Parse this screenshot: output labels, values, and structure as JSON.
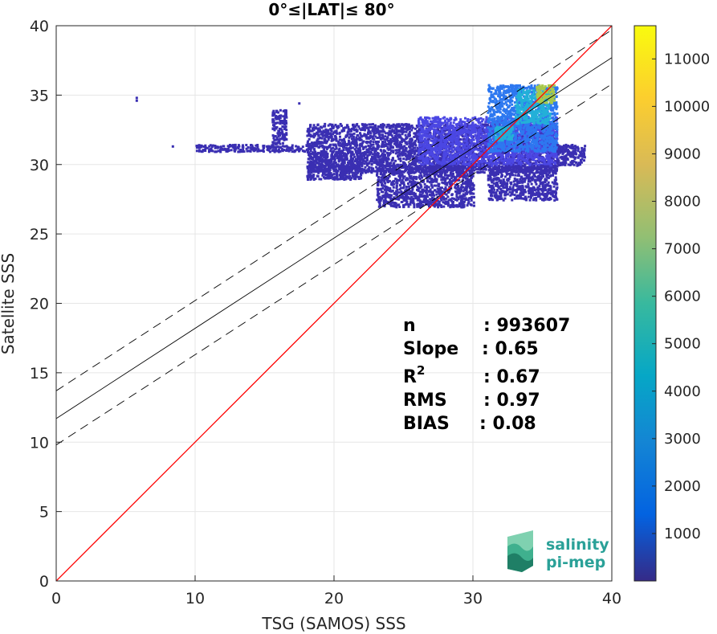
{
  "chart_data": {
    "type": "heatmap",
    "title": "0°≤|LAT|≤ 80°",
    "xlabel": "TSG (SAMOS) SSS",
    "ylabel": "Satellite SSS",
    "xlim": [
      0,
      40
    ],
    "ylim": [
      0,
      40
    ],
    "xticks": [
      "0",
      "10",
      "20",
      "30",
      "40"
    ],
    "yticks": [
      "0",
      "5",
      "10",
      "15",
      "20",
      "25",
      "30",
      "35",
      "40"
    ],
    "grid": true,
    "colorbar": {
      "range": [
        0,
        11700
      ],
      "ticks": [
        "1000",
        "2000",
        "3000",
        "4000",
        "5000",
        "6000",
        "7000",
        "8000",
        "9000",
        "10000",
        "11000"
      ],
      "colormap": "parula"
    },
    "lines": [
      {
        "kind": "one-to-one",
        "color": "#ff0000",
        "style": "solid",
        "slope": 1,
        "intercept": 0
      },
      {
        "kind": "regression",
        "color": "#000000",
        "style": "solid",
        "slope": 0.65,
        "intercept": 11.7
      },
      {
        "kind": "regression-plus-rms",
        "color": "#000000",
        "style": "dashed",
        "slope": 0.65,
        "intercept": 13.7
      },
      {
        "kind": "regression-minus-rms",
        "color": "#000000",
        "style": "dashed",
        "slope": 0.65,
        "intercept": 9.8
      }
    ],
    "density_clusters": [
      {
        "x": [
          18,
          36
        ],
        "y": [
          29.5,
          33
        ],
        "level": 1
      },
      {
        "x": [
          26,
          36
        ],
        "y": [
          30,
          33.5
        ],
        "level": 2
      },
      {
        "x": [
          31,
          36
        ],
        "y": [
          31,
          35.8
        ],
        "level": 3
      },
      {
        "x": [
          33,
          35.5
        ],
        "y": [
          33,
          35.5
        ],
        "level": 4
      },
      {
        "x": [
          34.5,
          35.8
        ],
        "y": [
          34.5,
          35.8
        ],
        "level": 5
      },
      {
        "x": [
          31.5,
          32.8
        ],
        "y": [
          31.8,
          32.8
        ],
        "level": 4
      },
      {
        "x": [
          18,
          22
        ],
        "y": [
          29,
          31
        ],
        "level": 1
      },
      {
        "x": [
          10,
          18
        ],
        "y": [
          31,
          31.5
        ],
        "level": 1
      },
      {
        "x": [
          31,
          36
        ],
        "y": [
          27.5,
          30
        ],
        "level": 1
      },
      {
        "x": [
          36,
          38
        ],
        "y": [
          30,
          31.5
        ],
        "level": 1
      },
      {
        "x": [
          23,
          30
        ],
        "y": [
          27,
          30
        ],
        "level": 1
      },
      {
        "x": [
          15.5,
          16.5
        ],
        "y": [
          31.5,
          34
        ],
        "level": 1
      }
    ],
    "isolated_points": [
      [
        5.8,
        34.6
      ],
      [
        5.8,
        34.8
      ],
      [
        8.4,
        31.3
      ],
      [
        17.5,
        34.4
      ]
    ]
  },
  "stats": [
    {
      "label": "n",
      "value": ": 993607"
    },
    {
      "label": "Slope",
      "value": ": 0.65"
    },
    {
      "label": "R",
      "sup": "2",
      "value": ": 0.67"
    },
    {
      "label": "RMS",
      "value": ": 0.97"
    },
    {
      "label": "BIAS",
      "value": ": 0.08"
    }
  ],
  "logo": {
    "line1": "salinity",
    "line2": "pi-mep"
  },
  "colors": {
    "one_to_one": "#ff0000",
    "regression": "#000000",
    "grid": "#e6e6e6",
    "logo": "#2aa198"
  }
}
